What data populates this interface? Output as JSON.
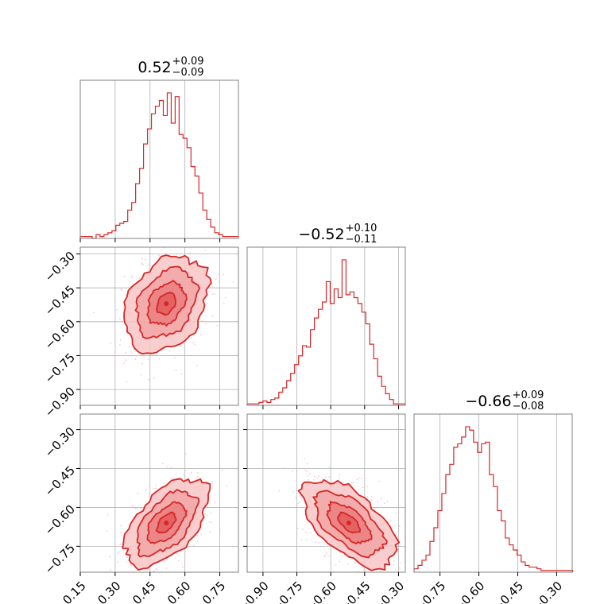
{
  "chart_data": {
    "type": "corner",
    "accent_color": "#d62728",
    "fill_color": "#f4b8b8",
    "scatter_color": "#f6c0c0",
    "grid": true,
    "titles": [
      {
        "main": "0.52",
        "sup": "+0.09",
        "sub": "−0.09"
      },
      {
        "main": "−0.52",
        "sup": "+0.10",
        "sub": "−0.11"
      },
      {
        "main": "−0.66",
        "sup": "+0.09",
        "sub": "−0.08"
      }
    ],
    "param_ranges": [
      [
        0.15,
        0.83
      ],
      [
        -0.97,
        -0.27
      ],
      [
        -0.85,
        -0.24
      ]
    ],
    "ticks": [
      [
        0.15,
        0.3,
        0.45,
        0.6,
        0.75
      ],
      [
        -0.9,
        -0.75,
        -0.6,
        -0.45,
        -0.3
      ],
      [
        -0.75,
        -0.6,
        -0.45,
        -0.3
      ]
    ],
    "tick_labels": [
      [
        "0.15",
        "0.30",
        "0.45",
        "0.60",
        "0.75"
      ],
      [
        "−0.90",
        "−0.75",
        "−0.60",
        "−0.45",
        "−0.30"
      ],
      [
        "−0.75",
        "−0.60",
        "−0.45",
        "−0.30"
      ]
    ],
    "histograms": [
      {
        "bin_start": 0.15,
        "bin_width": 0.017,
        "counts": [
          1,
          1,
          1,
          0,
          2,
          1,
          2,
          3,
          4,
          7,
          8,
          9,
          15,
          19,
          29,
          37,
          50,
          58,
          66,
          70,
          73,
          65,
          77,
          61,
          75,
          55,
          53,
          48,
          38,
          33,
          24,
          15,
          10,
          6,
          3,
          2,
          1,
          1,
          1,
          1
        ]
      },
      {
        "bin_start": -0.97,
        "bin_width": 0.0175,
        "counts": [
          1,
          1,
          1,
          2,
          3,
          2,
          4,
          5,
          9,
          12,
          17,
          22,
          28,
          34,
          41,
          40,
          52,
          60,
          66,
          71,
          85,
          70,
          80,
          74,
          100,
          76,
          78,
          74,
          70,
          64,
          56,
          42,
          32,
          20,
          13,
          8,
          4,
          1,
          1,
          1
        ]
      },
      {
        "bin_start": -0.85,
        "bin_width": 0.0153,
        "counts": [
          2,
          4,
          7,
          10,
          18,
          26,
          36,
          46,
          57,
          63,
          73,
          75,
          79,
          85,
          83,
          76,
          70,
          75,
          76,
          57,
          50,
          36,
          30,
          20,
          16,
          13,
          10,
          6,
          4,
          3,
          3,
          2,
          1,
          1,
          1,
          1,
          1,
          1,
          1,
          1
        ]
      }
    ],
    "pairs": [
      {
        "x_param": 0,
        "y_param": 1,
        "mean": [
          0.52,
          -0.52
        ],
        "sd": [
          0.09,
          0.105
        ],
        "corr": 0.3
      },
      {
        "x_param": 0,
        "y_param": 2,
        "mean": [
          0.52,
          -0.66
        ],
        "sd": [
          0.09,
          0.085
        ],
        "corr": 0.55
      },
      {
        "x_param": 1,
        "y_param": 2,
        "mean": [
          -0.52,
          -0.66
        ],
        "sd": [
          0.105,
          0.085
        ],
        "corr": -0.6
      }
    ]
  }
}
